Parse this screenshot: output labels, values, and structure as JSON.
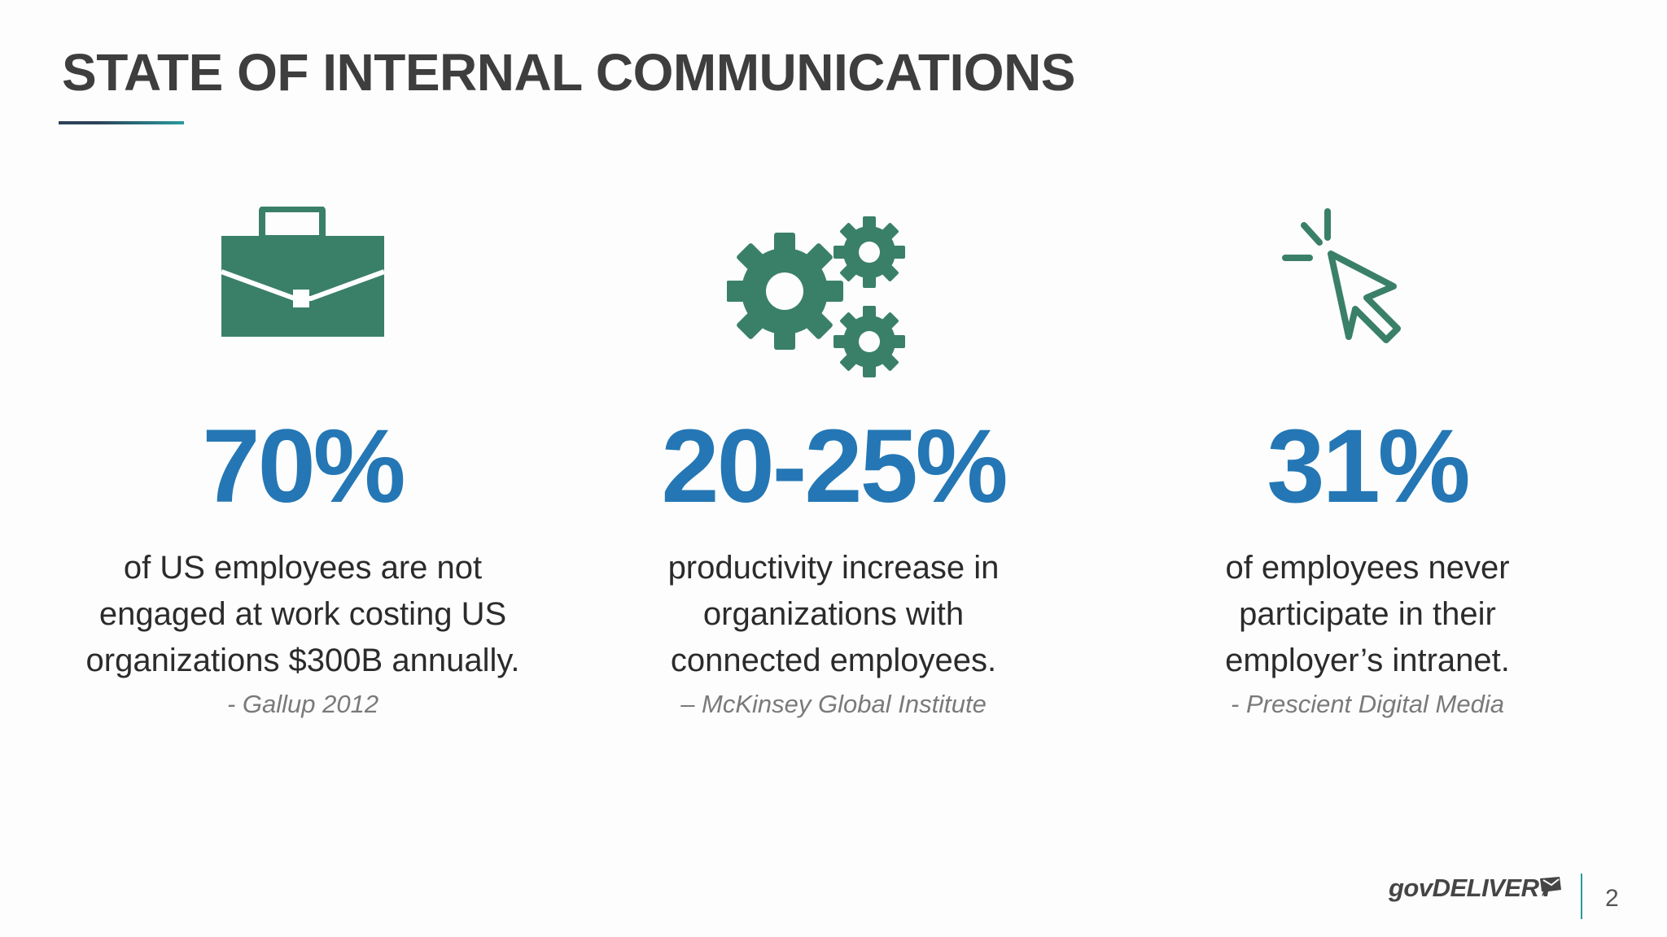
{
  "slide": {
    "title": "STATE OF INTERNAL COMMUNICATIONS",
    "accent_colors": {
      "title_text": "#3e3e3e",
      "rule_dark": "#2c4157",
      "rule_teal": "#2a9a9e",
      "icon_green": "#3a8068",
      "stat_blue": "#2477b4"
    },
    "stats": [
      {
        "icon": "briefcase-icon",
        "value": "70%",
        "description_lines": [
          "of US employees are not",
          "engaged at work costing US",
          "organizations $300B annually."
        ],
        "source": "- Gallup 2012"
      },
      {
        "icon": "gears-icon",
        "value": "20-25%",
        "description_lines": [
          "productivity increase in",
          "organizations with",
          "connected employees."
        ],
        "source": "– McKinsey Global Institute"
      },
      {
        "icon": "cursor-click-icon",
        "value": "31%",
        "description_lines": [
          "of employees never",
          "participate in their",
          "employer’s intranet."
        ],
        "source": "- Prescient Digital Media"
      }
    ],
    "footer": {
      "logo_text": "govDELIVERY",
      "page_number": "2"
    }
  }
}
